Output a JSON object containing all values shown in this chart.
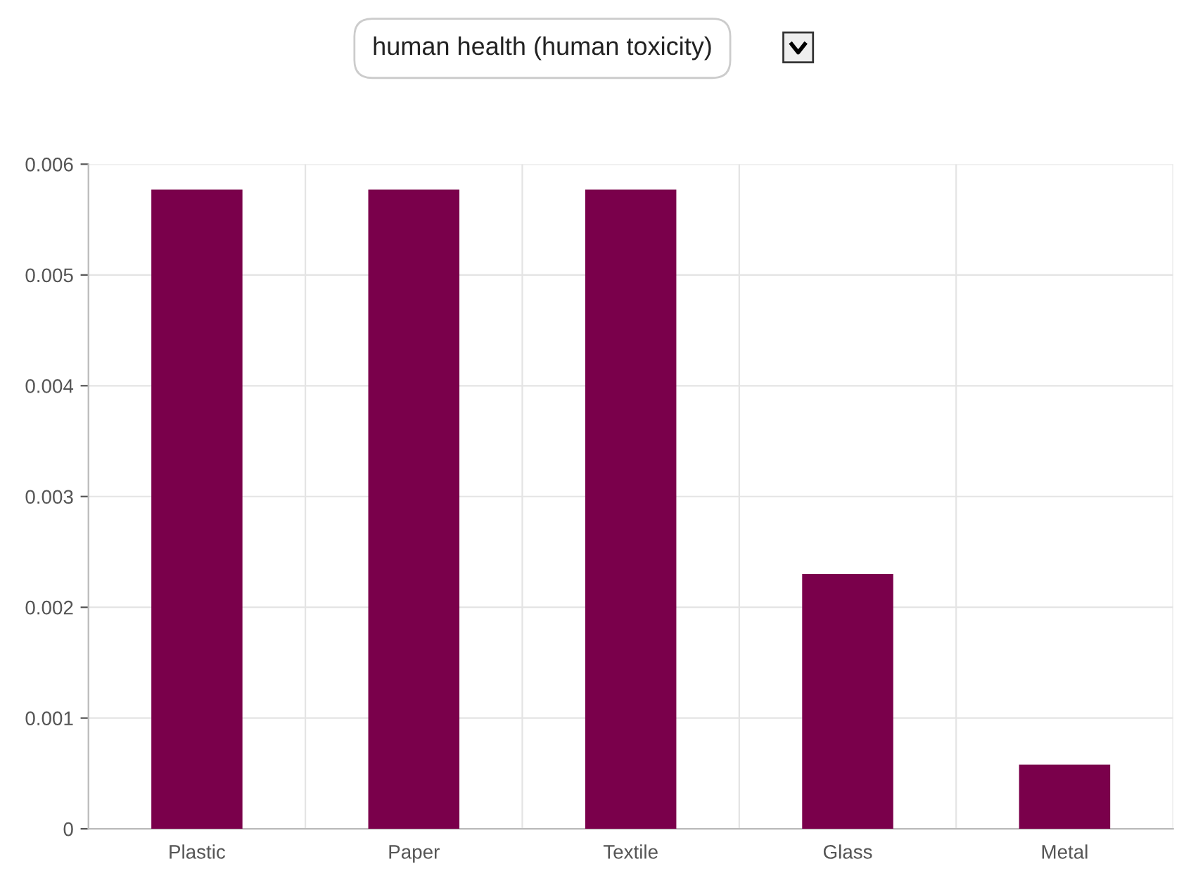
{
  "chart_data": {
    "type": "bar",
    "title": "human health (human toxicity)",
    "categories": [
      "Plastic",
      "Paper",
      "Textile",
      "Glass",
      "Metal"
    ],
    "values": [
      0.00577,
      0.00577,
      0.00577,
      0.0023,
      0.00058
    ],
    "color": "#7a004b",
    "ylim": [
      0,
      0.006
    ],
    "yticks": [
      {
        "value": 0,
        "label": "0"
      },
      0.001,
      0.002,
      0.003,
      0.004,
      0.005,
      0.006
    ],
    "grid": true
  }
}
